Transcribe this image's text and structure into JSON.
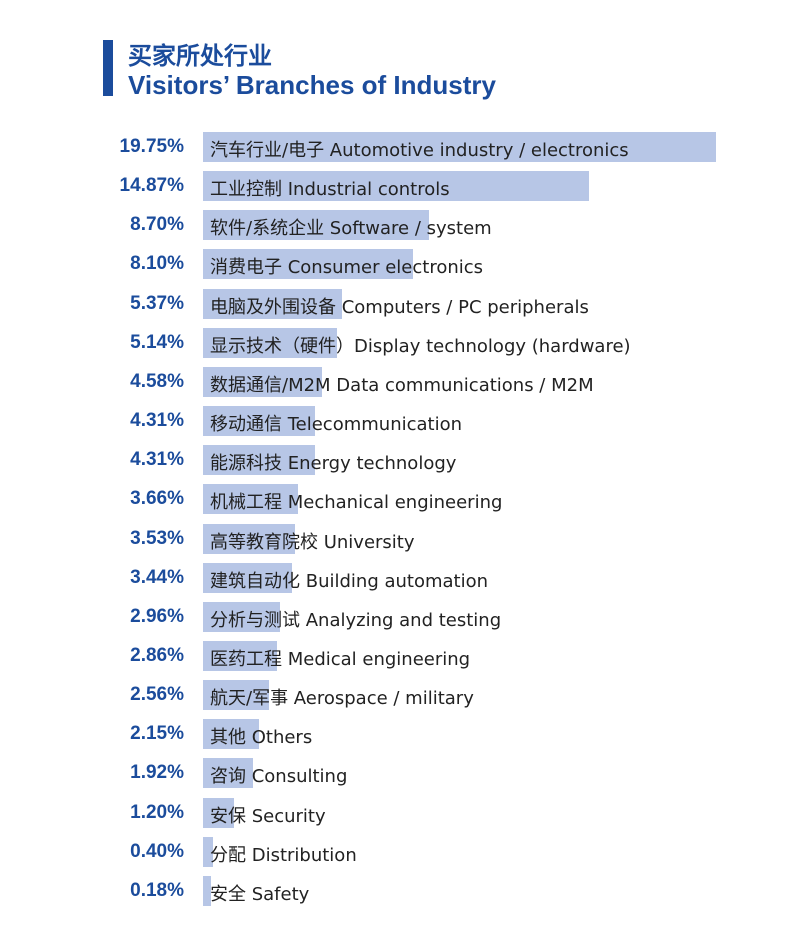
{
  "title_cn": "买家所处行业",
  "title_en": "Visitors’ Branches of Industry",
  "colors": {
    "accent": "#1b4c9c",
    "bar": "#b7c6e6",
    "text": "#222222"
  },
  "chart_data": {
    "type": "bar",
    "orientation": "horizontal",
    "title": "买家所处行业 / Visitors’ Branches of Industry",
    "categories": [
      "汽车行业/电子 Automotive industry / electronics",
      "工业控制 Industrial controls",
      "软件/系统企业 Software / system",
      "消费电子 Consumer electronics",
      "电脑及外围设备 Computers / PC peripherals",
      "显示技术（硬件）Display technology (hardware)",
      "数据通信/M2M Data communications / M2M",
      "移动通信 Telecommunication",
      "能源科技 Energy technology",
      "机械工程 Mechanical engineering",
      "高等教育院校 University",
      "建筑自动化 Building automation",
      "分析与测试 Analyzing and testing",
      "医药工程 Medical engineering",
      "航天/军事 Aerospace / military",
      "其他 Others",
      "咨询 Consulting",
      "安保 Security",
      "分配 Distribution",
      "安全 Safety"
    ],
    "values": [
      19.75,
      14.87,
      8.7,
      8.1,
      5.37,
      5.14,
      4.58,
      4.31,
      4.31,
      3.66,
      3.53,
      3.44,
      2.96,
      2.86,
      2.56,
      2.15,
      1.92,
      1.2,
      0.4,
      0.18
    ],
    "value_labels": [
      "19.75%",
      "14.87%",
      "8.70%",
      "8.10%",
      "5.37%",
      "5.14%",
      "4.58%",
      "4.31%",
      "4.31%",
      "3.66%",
      "3.53%",
      "3.44%",
      "2.96%",
      "2.86%",
      "2.56%",
      "2.15%",
      "1.92%",
      "1.20%",
      "0.40%",
      "0.18%"
    ],
    "unit": "%",
    "grid": false,
    "legend": "none"
  }
}
